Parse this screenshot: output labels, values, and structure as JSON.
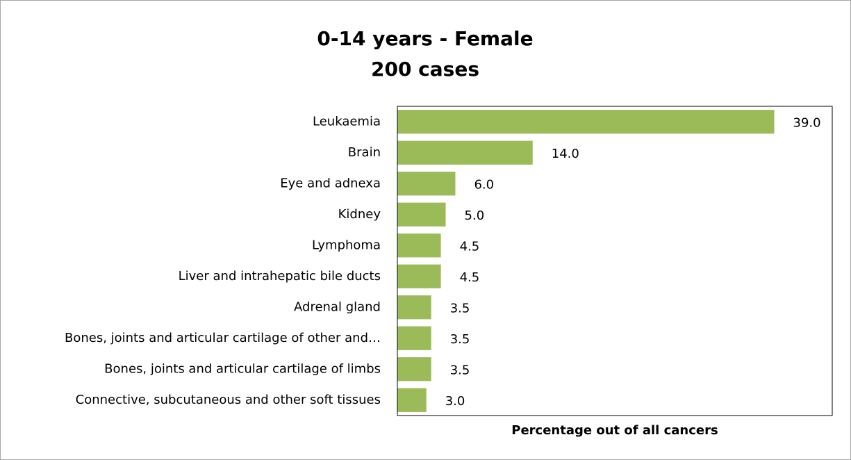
{
  "chart_data": {
    "type": "bar",
    "orientation": "horizontal",
    "title": "0-14 years - Female",
    "subtitle": "200 cases",
    "x_label": "Percentage out of all cancers",
    "categories": [
      "Leukaemia",
      "Brain",
      "Eye and adnexa",
      "Kidney",
      "Lymphoma",
      "Liver and intrahepatic bile ducts",
      "Adrenal gland",
      "Bones, joints and articular cartilage of other and…",
      "Bones, joints and articular cartilage of limbs",
      "Connective, subcutaneous and other soft tissues"
    ],
    "values": [
      39.0,
      14.0,
      6.0,
      5.0,
      4.5,
      4.5,
      3.5,
      3.5,
      3.5,
      3.0
    ],
    "value_labels": [
      "39.0",
      "14.0",
      "6.0",
      "5.0",
      "4.5",
      "4.5",
      "3.5",
      "3.5",
      "3.5",
      "3.0"
    ],
    "color": "#9bbb59",
    "xlim": [
      0,
      45
    ]
  }
}
